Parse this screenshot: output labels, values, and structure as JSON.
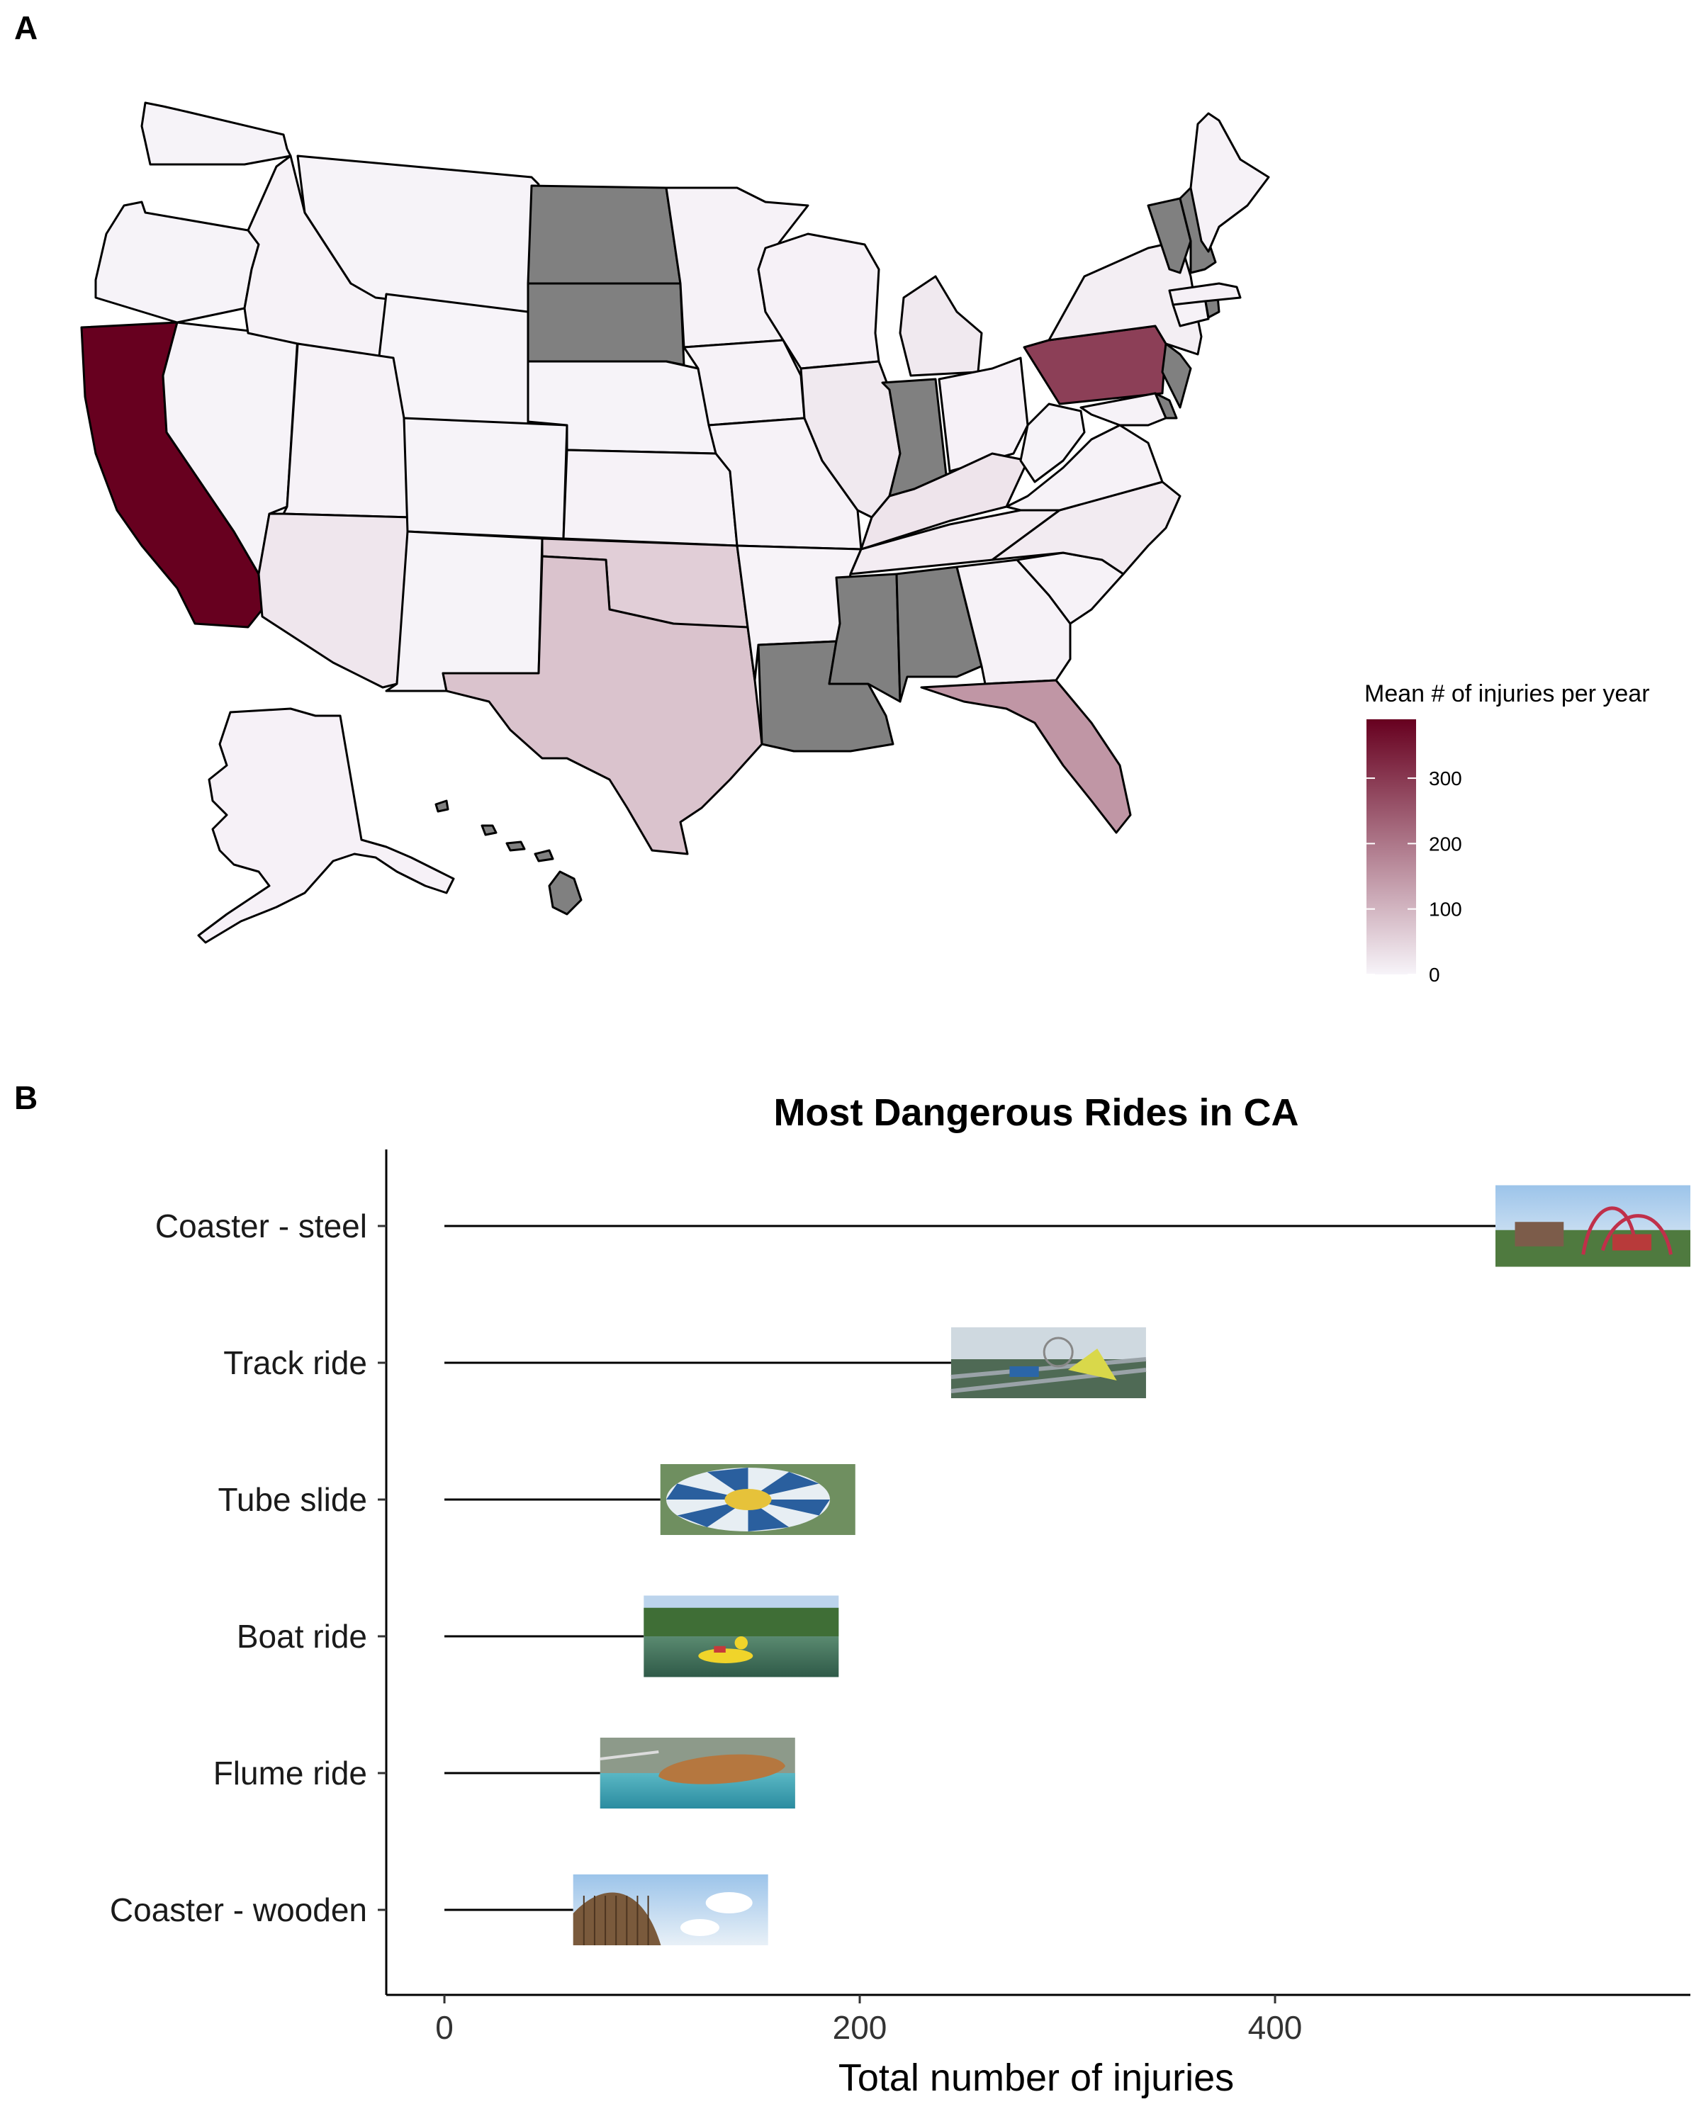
{
  "panels": {
    "a_label": "A",
    "b_label": "B"
  },
  "chart_data": [
    {
      "type": "choropleth",
      "title": "",
      "legend": {
        "title": "Mean # of injuries per year",
        "ticks": [
          0,
          100,
          200,
          300
        ],
        "range": [
          0,
          390
        ],
        "low_color": "#f7f4f9",
        "high_color": "#67001f",
        "missing_color": "#808080",
        "placement": "right"
      },
      "states": [
        {
          "name": "Washington",
          "value": 2
        },
        {
          "name": "Oregon",
          "value": 2
        },
        {
          "name": "California",
          "value": 390
        },
        {
          "name": "Nevada",
          "value": 2
        },
        {
          "name": "Idaho",
          "value": 3
        },
        {
          "name": "Montana",
          "value": 2
        },
        {
          "name": "Wyoming",
          "value": 0
        },
        {
          "name": "Utah",
          "value": 3
        },
        {
          "name": "Arizona",
          "value": 22
        },
        {
          "name": "Colorado",
          "value": 2
        },
        {
          "name": "New Mexico",
          "value": 2
        },
        {
          "name": "North Dakota",
          "value": null
        },
        {
          "name": "South Dakota",
          "value": null
        },
        {
          "name": "Nebraska",
          "value": 2
        },
        {
          "name": "Kansas",
          "value": 3
        },
        {
          "name": "Oklahoma",
          "value": 60
        },
        {
          "name": "Texas",
          "value": 78
        },
        {
          "name": "Minnesota",
          "value": 3
        },
        {
          "name": "Iowa",
          "value": 3
        },
        {
          "name": "Missouri",
          "value": 3
        },
        {
          "name": "Arkansas",
          "value": 1
        },
        {
          "name": "Louisiana",
          "value": null
        },
        {
          "name": "Wisconsin",
          "value": 4
        },
        {
          "name": "Illinois",
          "value": 18
        },
        {
          "name": "Michigan",
          "value": 18
        },
        {
          "name": "Indiana",
          "value": null
        },
        {
          "name": "Ohio",
          "value": 4
        },
        {
          "name": "Kentucky",
          "value": 25
        },
        {
          "name": "Tennessee",
          "value": 12
        },
        {
          "name": "Mississippi",
          "value": null
        },
        {
          "name": "Alabama",
          "value": null
        },
        {
          "name": "Georgia",
          "value": 3
        },
        {
          "name": "Florida",
          "value": 150
        },
        {
          "name": "South Carolina",
          "value": 3
        },
        {
          "name": "North Carolina",
          "value": 14
        },
        {
          "name": "Virginia",
          "value": 3
        },
        {
          "name": "West Virginia",
          "value": 2
        },
        {
          "name": "Pennsylvania",
          "value": 290
        },
        {
          "name": "New York",
          "value": 10
        },
        {
          "name": "New Jersey",
          "value": null
        },
        {
          "name": "Delaware",
          "value": null
        },
        {
          "name": "Maryland",
          "value": 3
        },
        {
          "name": "Connecticut",
          "value": 3
        },
        {
          "name": "Rhode Island",
          "value": null
        },
        {
          "name": "Massachusetts",
          "value": 6
        },
        {
          "name": "Vermont",
          "value": null
        },
        {
          "name": "New Hampshire",
          "value": null
        },
        {
          "name": "Maine",
          "value": 3
        },
        {
          "name": "Alaska",
          "value": 4
        },
        {
          "name": "Hawaii",
          "value": null
        }
      ]
    },
    {
      "type": "bar",
      "style": "lollipop-with-images",
      "title": "Most Dangerous Rides in CA",
      "xlabel": "Total number of injuries",
      "ylabel": "",
      "xlim": [
        -28,
        600
      ],
      "x_ticks": [
        0,
        200,
        400
      ],
      "categories": [
        "Coaster - steel",
        "Track ride",
        "Tube slide",
        "Boat ride",
        "Flume ride",
        "Coaster - wooden"
      ],
      "values": [
        524,
        244,
        104,
        96,
        75,
        62
      ],
      "grid": false
    }
  ]
}
